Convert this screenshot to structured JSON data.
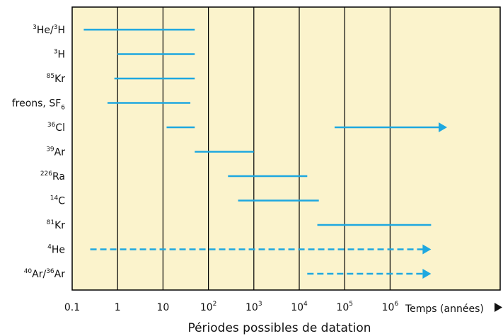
{
  "chart_data": {
    "type": "range",
    "title": "",
    "xlabel": "Périodes possibles de datation",
    "x_axis_end_label": "Temps (années)",
    "x_scale": "log10",
    "xlim": [
      0.1,
      10000000
    ],
    "grid": "vertical",
    "colors": {
      "background": "#fbf3cc",
      "bar": "#1ea8e0",
      "grid": "#000000"
    },
    "x_ticks": [
      {
        "value": 0.1,
        "base": "0.1",
        "exp": ""
      },
      {
        "value": 1,
        "base": "1",
        "exp": ""
      },
      {
        "value": 10,
        "base": "10",
        "exp": ""
      },
      {
        "value": 100,
        "base": "10",
        "exp": "2"
      },
      {
        "value": 1000,
        "base": "10",
        "exp": "3"
      },
      {
        "value": 10000,
        "base": "10",
        "exp": "4"
      },
      {
        "value": 100000,
        "base": "10",
        "exp": "5"
      },
      {
        "value": 1000000,
        "base": "10",
        "exp": "6"
      }
    ],
    "series": [
      {
        "parts": [
          {
            "t": "3",
            "sup": true
          },
          {
            "t": "He/"
          },
          {
            "t": "3",
            "sup": true
          },
          {
            "t": "H"
          }
        ],
        "ranges": [
          {
            "from": 0.18,
            "to": 50,
            "style": "solid",
            "arrow": false
          }
        ]
      },
      {
        "parts": [
          {
            "t": "3",
            "sup": true
          },
          {
            "t": "H"
          }
        ],
        "ranges": [
          {
            "from": 1,
            "to": 50,
            "style": "solid",
            "arrow": false
          }
        ]
      },
      {
        "parts": [
          {
            "t": "85",
            "sup": true
          },
          {
            "t": "Kr"
          }
        ],
        "ranges": [
          {
            "from": 0.85,
            "to": 50,
            "style": "solid",
            "arrow": false
          }
        ]
      },
      {
        "parts": [
          {
            "t": "freons, SF"
          },
          {
            "t": "6",
            "sub": true
          }
        ],
        "ranges": [
          {
            "from": 0.6,
            "to": 40,
            "style": "solid",
            "arrow": false
          }
        ]
      },
      {
        "parts": [
          {
            "t": "36",
            "sup": true
          },
          {
            "t": "Cl"
          }
        ],
        "ranges": [
          {
            "from": 12,
            "to": 50,
            "style": "solid",
            "arrow": false
          },
          {
            "from": 60000,
            "to": 18000000,
            "style": "solid",
            "arrow": true
          }
        ]
      },
      {
        "parts": [
          {
            "t": "39",
            "sup": true
          },
          {
            "t": "Ar"
          }
        ],
        "ranges": [
          {
            "from": 50,
            "to": 1000,
            "style": "solid",
            "arrow": false
          }
        ]
      },
      {
        "parts": [
          {
            "t": "226",
            "sup": true
          },
          {
            "t": "Ra"
          }
        ],
        "ranges": [
          {
            "from": 270,
            "to": 15000,
            "style": "solid",
            "arrow": false
          }
        ]
      },
      {
        "parts": [
          {
            "t": "14",
            "sup": true
          },
          {
            "t": "C"
          }
        ],
        "ranges": [
          {
            "from": 450,
            "to": 27000,
            "style": "solid",
            "arrow": false
          }
        ]
      },
      {
        "parts": [
          {
            "t": "81",
            "sup": true
          },
          {
            "t": "Kr"
          }
        ],
        "ranges": [
          {
            "from": 25000,
            "to": 8000000,
            "style": "solid",
            "arrow": false
          }
        ]
      },
      {
        "parts": [
          {
            "t": "4",
            "sup": true
          },
          {
            "t": "He"
          }
        ],
        "ranges": [
          {
            "from": 0.25,
            "to": 8000000,
            "style": "dashed",
            "arrow": true
          }
        ]
      },
      {
        "parts": [
          {
            "t": "40",
            "sup": true
          },
          {
            "t": "Ar/"
          },
          {
            "t": "36",
            "sup": true
          },
          {
            "t": "Ar"
          }
        ],
        "ranges": [
          {
            "from": 15000,
            "to": 8000000,
            "style": "dashed",
            "arrow": true
          }
        ]
      }
    ]
  }
}
